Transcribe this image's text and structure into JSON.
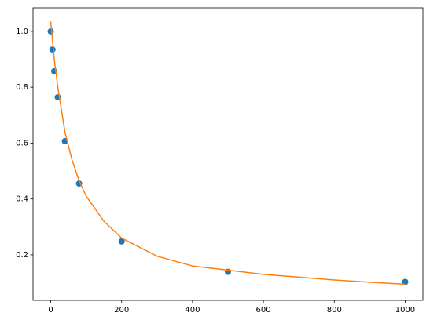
{
  "chart_data": {
    "type": "scatter",
    "series": [
      {
        "type": "scatter",
        "color": "#1f77b4",
        "x": [
          0,
          5,
          10,
          20,
          40,
          80,
          200,
          500,
          1000
        ],
        "values": [
          1.0,
          0.935,
          0.857,
          0.764,
          0.607,
          0.455,
          0.248,
          0.139,
          0.103
        ]
      },
      {
        "type": "line",
        "color": "#ff7f0e",
        "x": [
          0,
          10,
          20,
          40,
          60,
          80,
          100,
          150,
          200,
          300,
          400,
          500,
          600,
          700,
          800,
          900,
          1000
        ],
        "values": [
          1.035,
          0.9,
          0.8,
          0.64,
          0.54,
          0.465,
          0.41,
          0.32,
          0.26,
          0.195,
          0.16,
          0.145,
          0.13,
          0.12,
          0.11,
          0.102,
          0.095
        ]
      }
    ],
    "xlim": [
      -50,
      1050
    ],
    "xticks": [
      0,
      200,
      400,
      600,
      800,
      1000
    ],
    "ylim": [
      0.037,
      1.084
    ],
    "yticks": [
      0.2,
      0.4,
      0.6,
      0.8,
      {
        "value": 1,
        "label": "1.0"
      }
    ]
  }
}
